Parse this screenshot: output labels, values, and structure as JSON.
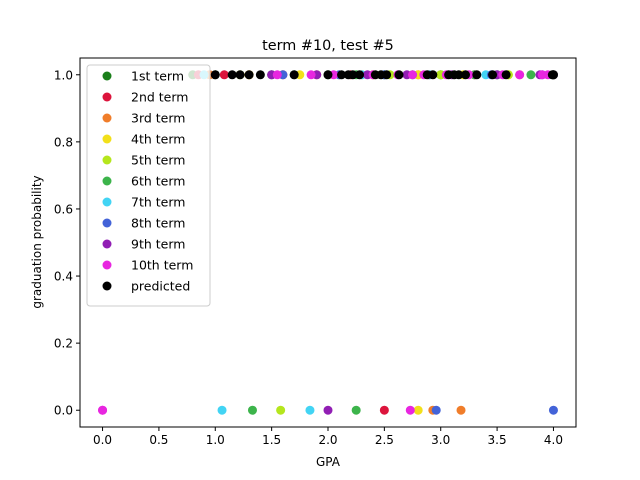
{
  "chart_data": {
    "type": "scatter",
    "title": "term #10, test #5",
    "xlabel": "GPA",
    "ylabel": "graduation probability",
    "xlim": [
      -0.2,
      4.2
    ],
    "ylim": [
      -0.05,
      1.05
    ],
    "xticks": [
      "0.0",
      "0.5",
      "1.0",
      "1.5",
      "2.0",
      "2.5",
      "3.0",
      "3.5",
      "4.0"
    ],
    "xtick_values": [
      0,
      0.5,
      1,
      1.5,
      2,
      2.5,
      3,
      3.5,
      4
    ],
    "yticks": [
      "0.0",
      "0.2",
      "0.4",
      "0.6",
      "0.8",
      "1.0"
    ],
    "ytick_values": [
      0,
      0.2,
      0.4,
      0.6,
      0.8,
      1.0
    ],
    "grid": false,
    "legend_position": "upper-left",
    "series": [
      {
        "name": "1st term",
        "color": "#1a7f1a",
        "x": [
          0.8,
          1.0,
          1.5,
          2.0,
          2.5,
          3.0,
          3.5,
          4.0
        ],
        "y": [
          1,
          1,
          1,
          1,
          1,
          1,
          1,
          1
        ]
      },
      {
        "name": "2nd term",
        "color": "#dc143c",
        "x": [
          0.85,
          1.08,
          1.6,
          2.2,
          2.5,
          2.9,
          3.3,
          4.0
        ],
        "y": [
          1,
          1,
          1,
          1,
          0,
          1,
          1,
          1
        ]
      },
      {
        "name": "3rd term",
        "color": "#f07d2a",
        "x": [
          0.95,
          1.3,
          1.9,
          2.4,
          2.8,
          2.93,
          3.18,
          3.7,
          4.0
        ],
        "y": [
          1,
          1,
          1,
          1,
          1,
          0,
          0,
          1,
          1
        ]
      },
      {
        "name": "4th term",
        "color": "#f2e01a",
        "x": [
          1.3,
          1.75,
          2.3,
          2.8,
          2.8,
          3.2,
          3.6,
          4.0
        ],
        "y": [
          1,
          1,
          1,
          1,
          0,
          1,
          1,
          1
        ]
      },
      {
        "name": "5th term",
        "color": "#b5e61d",
        "x": [
          1.22,
          1.58,
          2.1,
          2.55,
          3.0,
          3.6,
          4.0
        ],
        "y": [
          1,
          0,
          1,
          1,
          1,
          1,
          1
        ]
      },
      {
        "name": "6th term",
        "color": "#3cb44b",
        "x": [
          1.33,
          1.7,
          2.25,
          2.25,
          2.75,
          3.3,
          3.8,
          4.0
        ],
        "y": [
          0,
          1,
          1,
          0,
          1,
          1,
          1,
          1
        ]
      },
      {
        "name": "7th term",
        "color": "#42d4f4",
        "x": [
          0.9,
          1.06,
          1.84,
          2.3,
          2.9,
          3.4,
          4.0
        ],
        "y": [
          1,
          0,
          0,
          1,
          1,
          1,
          1
        ]
      },
      {
        "name": "8th term",
        "color": "#4363d8",
        "x": [
          1.6,
          2.1,
          2.5,
          2.96,
          3.45,
          3.9,
          4.0
        ],
        "y": [
          1,
          1,
          1,
          0,
          1,
          1,
          0
        ]
      },
      {
        "name": "9th term",
        "color": "#911eb4",
        "x": [
          1.5,
          1.9,
          2.0,
          2.35,
          2.7,
          3.1,
          3.5,
          3.88,
          4.0
        ],
        "y": [
          1,
          1,
          0,
          1,
          1,
          1,
          1,
          1,
          1
        ]
      },
      {
        "name": "10th term",
        "color": "#e826e0",
        "x": [
          0.0,
          0.0,
          1.55,
          1.85,
          2.05,
          2.4,
          2.62,
          2.73,
          2.75,
          2.85,
          3.05,
          3.25,
          3.55,
          3.7,
          3.9,
          3.95
        ],
        "y": [
          0,
          0,
          1,
          1,
          1,
          1,
          1,
          0,
          1,
          1,
          1,
          1,
          1,
          1,
          1,
          1
        ]
      },
      {
        "name": "predicted",
        "color": "#000000",
        "x": [
          1.0,
          1.15,
          1.22,
          1.3,
          1.4,
          1.7,
          2.0,
          2.12,
          2.18,
          2.22,
          2.28,
          2.42,
          2.47,
          2.52,
          2.63,
          2.88,
          2.93,
          3.07,
          3.12,
          3.16,
          3.22,
          3.32,
          3.46,
          3.58,
          3.99,
          4.0
        ],
        "y": [
          1,
          1,
          1,
          1,
          1,
          1,
          1,
          1,
          1,
          1,
          1,
          1,
          1,
          1,
          1,
          1,
          1,
          1,
          1,
          1,
          1,
          1,
          1,
          1,
          1,
          1
        ]
      }
    ]
  }
}
